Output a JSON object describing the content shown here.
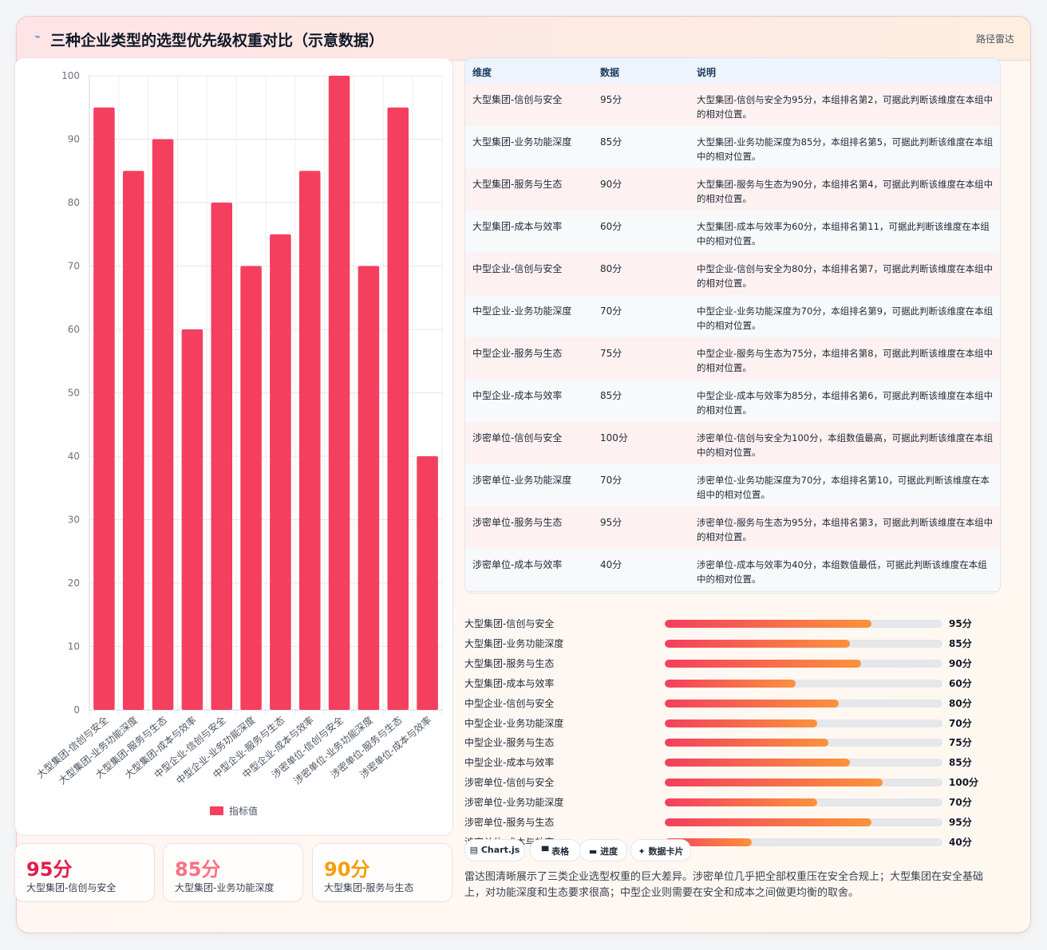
{
  "header": {
    "icon": "chart-line-icon",
    "title": "三种企业类型的选型优先级权重对比（示意数据）",
    "right_label": "路径雷达"
  },
  "chart_data": {
    "type": "bar",
    "categories": [
      "大型集团-信创与安全",
      "大型集团-业务功能深度",
      "大型集团-服务与生态",
      "大型集团-成本与效率",
      "中型企业-信创与安全",
      "中型企业-业务功能深度",
      "中型企业-服务与生态",
      "中型企业-成本与效率",
      "涉密单位-信创与安全",
      "涉密单位-业务功能深度",
      "涉密单位-服务与生态",
      "涉密单位-成本与效率"
    ],
    "series": [
      {
        "name": "指标值",
        "values": [
          95,
          85,
          90,
          60,
          80,
          70,
          75,
          85,
          100,
          70,
          95,
          40
        ],
        "color": "#f43f5e"
      }
    ],
    "yticks": [
      "0",
      "10",
      "20",
      "30",
      "40",
      "50",
      "60",
      "70",
      "80",
      "90",
      "100"
    ],
    "ylim": [
      0,
      100
    ],
    "grid": true,
    "legend": "bottom"
  },
  "stats": [
    {
      "value": "95分",
      "label": "大型集团-信创与安全",
      "color": "#e11d48"
    },
    {
      "value": "85分",
      "label": "大型集团-业务功能深度",
      "color": "#f87185"
    },
    {
      "value": "90分",
      "label": "大型集团-服务与生态",
      "color": "#f59e0b"
    }
  ],
  "table": {
    "headers": [
      "维度",
      "数据",
      "说明"
    ],
    "rows": [
      {
        "dim": "大型集团-信创与安全",
        "val": "95分",
        "desc": "大型集团-信创与安全为95分，本组排名第2，可据此判断该维度在本组中的相对位置。"
      },
      {
        "dim": "大型集团-业务功能深度",
        "val": "85分",
        "desc": "大型集团-业务功能深度为85分，本组排名第5，可据此判断该维度在本组中的相对位置。"
      },
      {
        "dim": "大型集团-服务与生态",
        "val": "90分",
        "desc": "大型集团-服务与生态为90分，本组排名第4，可据此判断该维度在本组中的相对位置。"
      },
      {
        "dim": "大型集团-成本与效率",
        "val": "60分",
        "desc": "大型集团-成本与效率为60分，本组排名第11，可据此判断该维度在本组中的相对位置。"
      },
      {
        "dim": "中型企业-信创与安全",
        "val": "80分",
        "desc": "中型企业-信创与安全为80分，本组排名第7，可据此判断该维度在本组中的相对位置。"
      },
      {
        "dim": "中型企业-业务功能深度",
        "val": "70分",
        "desc": "中型企业-业务功能深度为70分，本组排名第9，可据此判断该维度在本组中的相对位置。"
      },
      {
        "dim": "中型企业-服务与生态",
        "val": "75分",
        "desc": "中型企业-服务与生态为75分，本组排名第8，可据此判断该维度在本组中的相对位置。"
      },
      {
        "dim": "中型企业-成本与效率",
        "val": "85分",
        "desc": "中型企业-成本与效率为85分，本组排名第6，可据此判断该维度在本组中的相对位置。"
      },
      {
        "dim": "涉密单位-信创与安全",
        "val": "100分",
        "desc": "涉密单位-信创与安全为100分，本组数值最高，可据此判断该维度在本组中的相对位置。"
      },
      {
        "dim": "涉密单位-业务功能深度",
        "val": "70分",
        "desc": "涉密单位-业务功能深度为70分，本组排名第10，可据此判断该维度在本组中的相对位置。"
      },
      {
        "dim": "涉密单位-服务与生态",
        "val": "95分",
        "desc": "涉密单位-服务与生态为95分，本组排名第3，可据此判断该维度在本组中的相对位置。"
      },
      {
        "dim": "涉密单位-成本与效率",
        "val": "40分",
        "desc": "涉密单位-成本与效率为40分，本组数值最低，可据此判断该维度在本组中的相对位置。"
      }
    ]
  },
  "progress": [
    {
      "label": "大型集团-信创与安全",
      "value": "95分",
      "fraction": 0.745
    },
    {
      "label": "大型集团-业务功能深度",
      "value": "85分",
      "fraction": 0.667
    },
    {
      "label": "大型集团-服务与生态",
      "value": "90分",
      "fraction": 0.706
    },
    {
      "label": "大型集团-成本与效率",
      "value": "60分",
      "fraction": 0.471
    },
    {
      "label": "中型企业-信创与安全",
      "value": "80分",
      "fraction": 0.627
    },
    {
      "label": "中型企业-业务功能深度",
      "value": "70分",
      "fraction": 0.549
    },
    {
      "label": "中型企业-服务与生态",
      "value": "75分",
      "fraction": 0.588
    },
    {
      "label": "中型企业-成本与效率",
      "value": "85分",
      "fraction": 0.667
    },
    {
      "label": "涉密单位-信创与安全",
      "value": "100分",
      "fraction": 0.784
    },
    {
      "label": "涉密单位-业务功能深度",
      "value": "70分",
      "fraction": 0.549
    },
    {
      "label": "涉密单位-服务与生态",
      "value": "95分",
      "fraction": 0.745
    },
    {
      "label": "涉密单位-成本与效率",
      "value": "40分",
      "fraction": 0.314
    }
  ],
  "chips": [
    {
      "icon": "chart-icon",
      "label": "▤ Chart.js"
    },
    {
      "icon": "table-icon",
      "label": "▀ 表格"
    },
    {
      "icon": "progress-icon",
      "label": "▬ 进度"
    },
    {
      "icon": "sparkle-icon",
      "label": "✦ 数据卡片"
    }
  ],
  "summary": "雷达图清晰展示了三类企业选型权重的巨大差异。涉密单位几乎把全部权重压在安全合规上；大型集团在安全基础上，对功能深度和生态要求很高；中型企业则需要在安全和成本之间做更均衡的取舍。"
}
